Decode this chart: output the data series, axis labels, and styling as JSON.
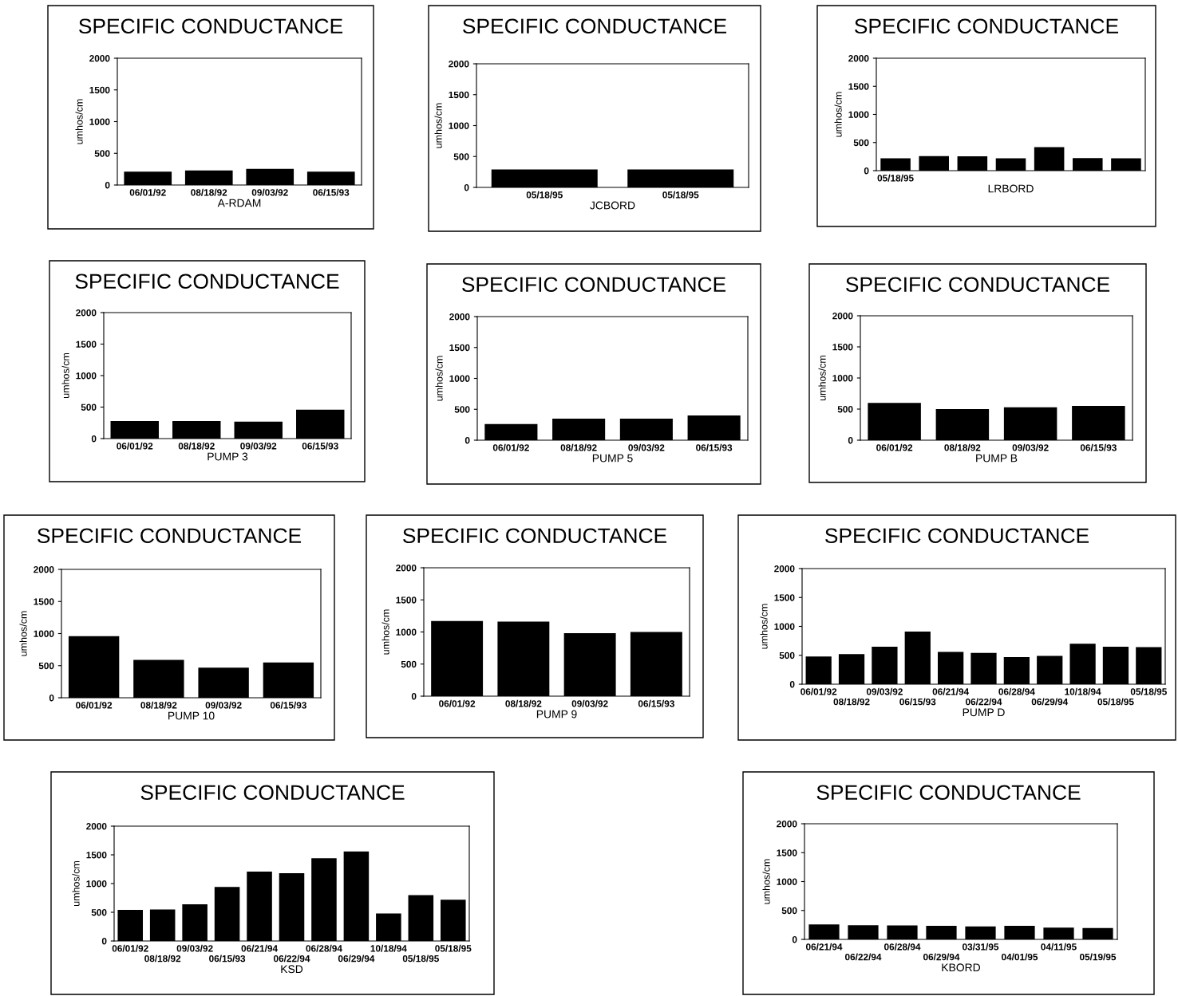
{
  "chart_data": [
    {
      "type": "bar",
      "title": "SPECIFIC CONDUCTANCE",
      "ylabel": "umhos/cm",
      "xlabel": "A-RDAM",
      "categories": [
        "06/01/92",
        "08/18/92",
        "09/03/92",
        "06/15/93"
      ],
      "values": [
        210,
        230,
        255,
        210
      ],
      "color": "#000000",
      "ylim": [
        0,
        2000
      ],
      "yticks": [
        0,
        500,
        1000,
        1500,
        2000
      ],
      "grid": false
    },
    {
      "type": "bar",
      "title": "SPECIFIC CONDUCTANCE",
      "ylabel": "umhos/cm",
      "xlabel": "JCBORD",
      "categories": [
        "05/18/95",
        "05/18/95"
      ],
      "values": [
        290,
        290
      ],
      "color": "#000000",
      "ylim": [
        0,
        2000
      ],
      "yticks": [
        0,
        500,
        1000,
        1500,
        2000
      ],
      "grid": false
    },
    {
      "type": "bar",
      "title": "SPECIFIC CONDUCTANCE",
      "ylabel": "umhos/cm",
      "xlabel": "LRBORD",
      "categories": [
        "05/18/95",
        null,
        null,
        null,
        null,
        null,
        null
      ],
      "values": [
        220,
        260,
        255,
        220,
        420,
        225,
        220
      ],
      "color": "#000000",
      "ylim": [
        0,
        2000
      ],
      "yticks": [
        0,
        500,
        1000,
        1500,
        2000
      ],
      "grid": false
    },
    {
      "type": "bar",
      "title": "SPECIFIC CONDUCTANCE",
      "ylabel": "umhos/cm",
      "xlabel": "PUMP 3",
      "categories": [
        "06/01/92",
        "08/18/92",
        "09/03/92",
        "06/15/93"
      ],
      "values": [
        280,
        280,
        270,
        460
      ],
      "color": "#000000",
      "ylim": [
        0,
        2000
      ],
      "yticks": [
        0,
        500,
        1000,
        1500,
        2000
      ],
      "grid": false
    },
    {
      "type": "bar",
      "title": "SPECIFIC CONDUCTANCE",
      "ylabel": "umhos/cm",
      "xlabel": "PUMP 5",
      "categories": [
        "06/01/92",
        "08/18/92",
        "09/03/92",
        "06/15/93"
      ],
      "values": [
        260,
        350,
        350,
        400
      ],
      "color": "#000000",
      "ylim": [
        0,
        2000
      ],
      "yticks": [
        0,
        500,
        1000,
        1500,
        2000
      ],
      "grid": false
    },
    {
      "type": "bar",
      "title": "SPECIFIC CONDUCTANCE",
      "ylabel": "umhos/cm",
      "xlabel": "PUMP B",
      "categories": [
        "06/01/92",
        "08/18/92",
        "09/03/92",
        "06/15/93"
      ],
      "values": [
        600,
        500,
        530,
        550
      ],
      "color": "#000000",
      "ylim": [
        0,
        2000
      ],
      "yticks": [
        0,
        500,
        1000,
        1500,
        2000
      ],
      "grid": false
    },
    {
      "type": "bar",
      "title": "SPECIFIC CONDUCTANCE",
      "ylabel": "umhos/cm",
      "xlabel": "PUMP 10",
      "categories": [
        "06/01/92",
        "08/18/92",
        "09/03/92",
        "06/15/93"
      ],
      "values": [
        960,
        590,
        470,
        550
      ],
      "color": "#000000",
      "ylim": [
        0,
        2000
      ],
      "yticks": [
        0,
        500,
        1000,
        1500,
        2000
      ],
      "grid": false
    },
    {
      "type": "bar",
      "title": "SPECIFIC CONDUCTANCE",
      "ylabel": "umhos/cm",
      "xlabel": "PUMP 9",
      "categories": [
        "06/01/92",
        "08/18/92",
        "09/03/92",
        "06/15/93"
      ],
      "values": [
        1170,
        1160,
        980,
        1000
      ],
      "color": "#000000",
      "ylim": [
        0,
        2000
      ],
      "yticks": [
        0,
        500,
        1000,
        1500,
        2000
      ],
      "grid": false
    },
    {
      "type": "bar",
      "title": "SPECIFIC CONDUCTANCE",
      "ylabel": "umhos/cm",
      "xlabel": "PUMP D",
      "categories": [
        "06/01/92",
        "08/18/92",
        "09/03/92",
        "06/15/93",
        "06/21/94",
        "06/22/94",
        "06/28/94",
        "06/29/94",
        "10/18/94",
        "05/18/95",
        "05/18/95"
      ],
      "values": [
        480,
        520,
        650,
        910,
        560,
        540,
        470,
        490,
        700,
        650,
        640
      ],
      "color": "#000000",
      "ylim": [
        0,
        2000
      ],
      "yticks": [
        0,
        500,
        1000,
        1500,
        2000
      ],
      "grid": false
    },
    {
      "type": "bar",
      "title": "SPECIFIC CONDUCTANCE",
      "ylabel": "umhos/cm",
      "xlabel": "KSD",
      "categories": [
        "06/01/92",
        "08/18/92",
        "09/03/92",
        "06/15/93",
        "06/21/94",
        "06/22/94",
        "06/28/94",
        "06/29/94",
        "10/18/94",
        "05/18/95",
        "05/18/95"
      ],
      "values": [
        540,
        550,
        640,
        940,
        1210,
        1180,
        1440,
        1560,
        480,
        800,
        720
      ],
      "color": "#000000",
      "ylim": [
        0,
        2000
      ],
      "yticks": [
        0,
        500,
        1000,
        1500,
        2000
      ],
      "grid": false
    },
    {
      "type": "bar",
      "title": "SPECIFIC CONDUCTANCE",
      "ylabel": "umhos/cm",
      "xlabel": "KBORD",
      "categories": [
        "06/21/94",
        "06/22/94",
        "06/28/94",
        "06/29/94",
        "03/31/95",
        "04/01/95",
        "04/11/95",
        "05/19/95"
      ],
      "values": [
        260,
        245,
        240,
        235,
        225,
        235,
        205,
        195
      ],
      "color": "#000000",
      "ylim": [
        0,
        2000
      ],
      "yticks": [
        0,
        500,
        1000,
        1500,
        2000
      ],
      "grid": false
    }
  ]
}
